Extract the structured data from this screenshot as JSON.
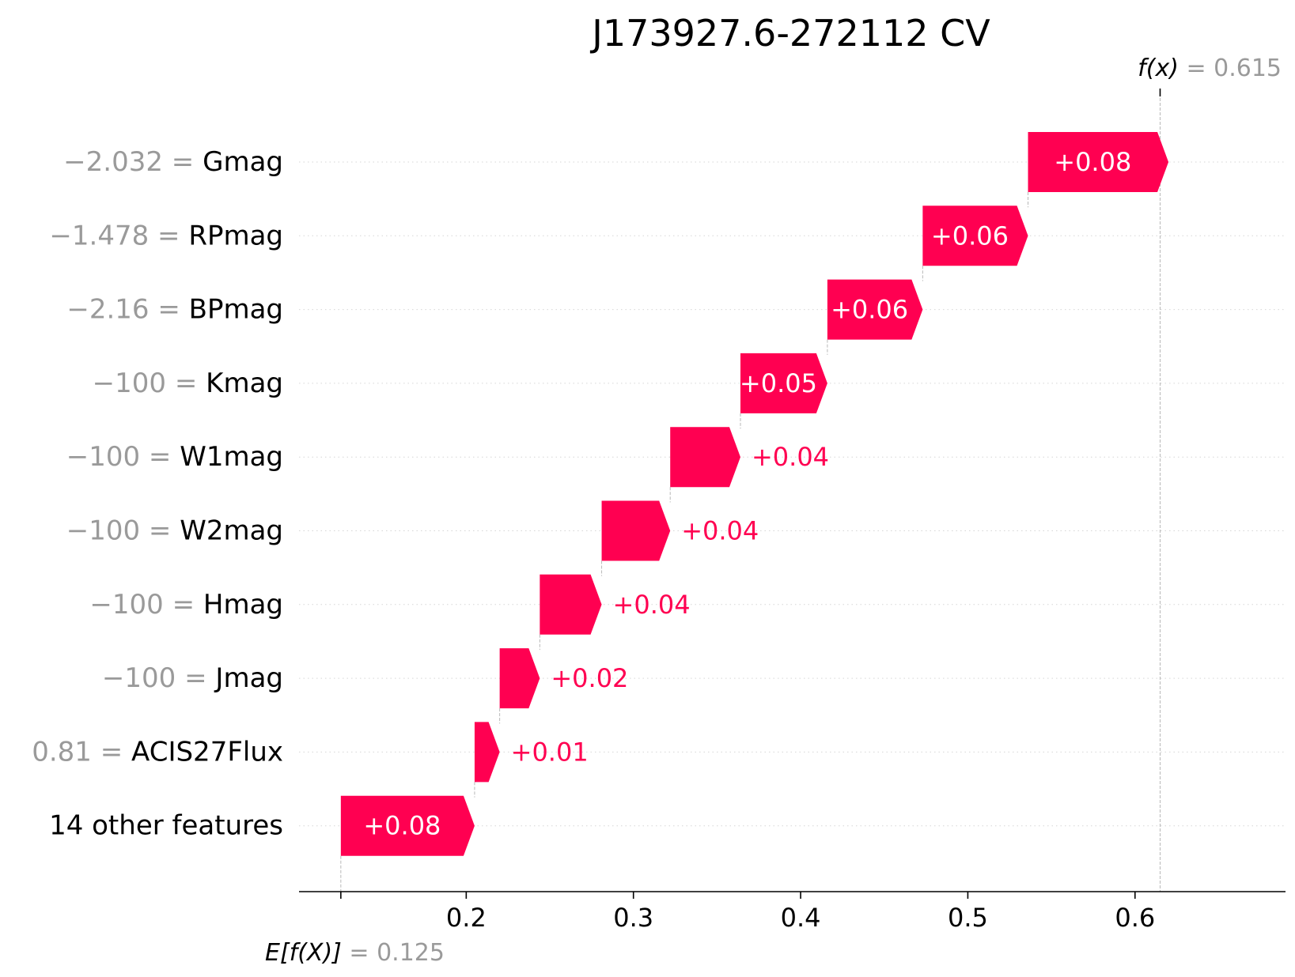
{
  "chart_data": {
    "type": "waterfall",
    "title": "J173927.6-272112 CV",
    "base_value": 0.125,
    "output_value": 0.615,
    "fx_label": "f(x)",
    "fx_value_text": "0.615",
    "ex_label": "E[f(X)]",
    "ex_value_text": "0.125",
    "xlim": [
      0.1,
      0.69
    ],
    "xticks": [
      0.2,
      0.3,
      0.4,
      0.5,
      0.6
    ],
    "xtick_labels": [
      "0.2",
      "0.3",
      "0.4",
      "0.5",
      "0.6"
    ],
    "features": [
      {
        "value_text": "−2.032",
        "name": "Gmag",
        "contribution": 0.084,
        "label": "+0.08"
      },
      {
        "value_text": "−1.478",
        "name": "RPmag",
        "contribution": 0.063,
        "label": "+0.06"
      },
      {
        "value_text": "−2.16",
        "name": "BPmag",
        "contribution": 0.057,
        "label": "+0.06"
      },
      {
        "value_text": "−100",
        "name": "Kmag",
        "contribution": 0.052,
        "label": "+0.05"
      },
      {
        "value_text": "−100",
        "name": "W1mag",
        "contribution": 0.042,
        "label": "+0.04"
      },
      {
        "value_text": "−100",
        "name": "W2mag",
        "contribution": 0.041,
        "label": "+0.04"
      },
      {
        "value_text": "−100",
        "name": "Hmag",
        "contribution": 0.037,
        "label": "+0.04"
      },
      {
        "value_text": "−100",
        "name": "Jmag",
        "contribution": 0.024,
        "label": "+0.02"
      },
      {
        "value_text": "0.81",
        "name": "ACIS27Flux",
        "contribution": 0.015,
        "label": "+0.01"
      },
      {
        "value_text": "",
        "name": "14 other features",
        "contribution": 0.08,
        "label": "+0.08"
      }
    ],
    "colors": {
      "positive": "#ff0051",
      "muted_text": "#9a9a9a",
      "grid": "#d6d6d6",
      "inside_label": "#ffffff"
    }
  }
}
